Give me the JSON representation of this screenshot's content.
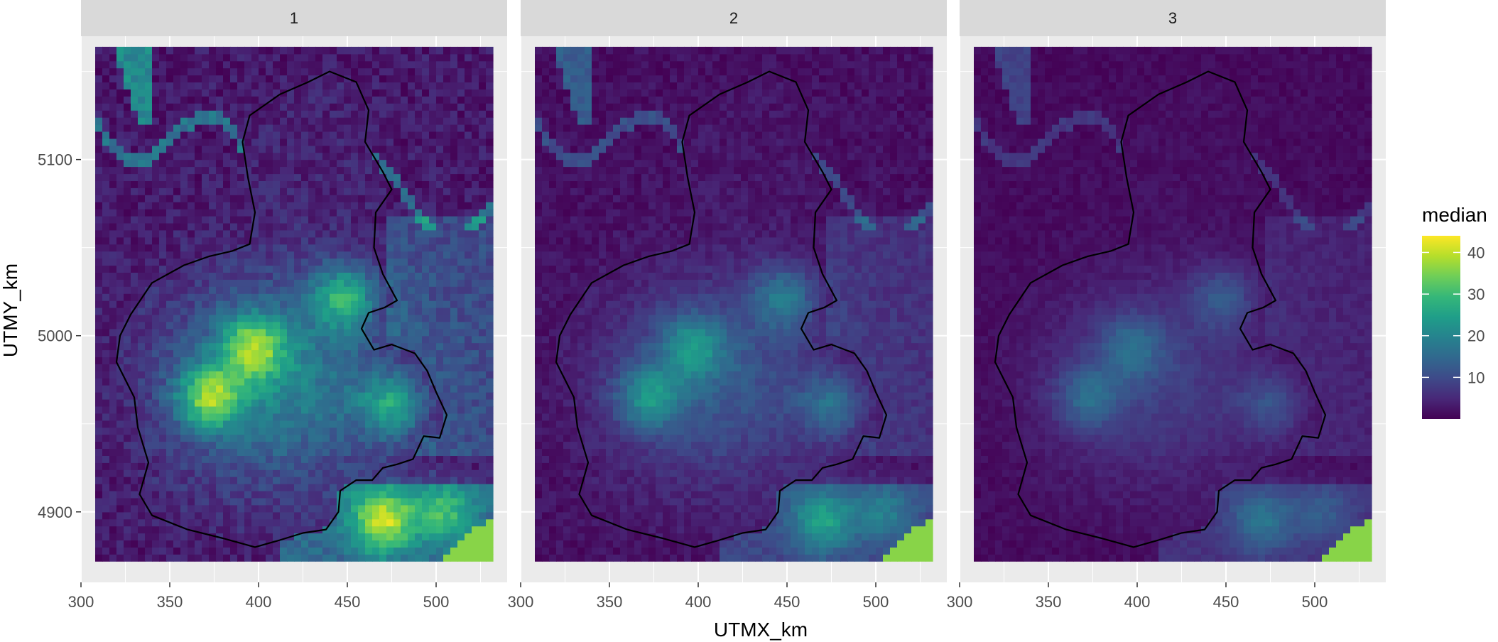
{
  "chart_data": {
    "type": "heatmap",
    "title": "",
    "xlabel": "UTMX_km",
    "ylabel": "UTMY_km",
    "xlim": [
      300,
      540
    ],
    "ylim": [
      4860,
      5170
    ],
    "x_ticks": [
      "300",
      "350",
      "400",
      "450",
      "500"
    ],
    "y_ticks": [
      "4900",
      "5000",
      "5100"
    ],
    "grid": true,
    "panels": [
      "1",
      "2",
      "3"
    ],
    "panel_intensity": [
      1.0,
      0.62,
      0.42
    ],
    "grid_extent": {
      "x": [
        308,
        532
      ],
      "y": [
        4872,
        5162
      ]
    },
    "legend": {
      "title": "median",
      "position": "right",
      "range": [
        0,
        44
      ],
      "ticks": [
        "10",
        "20",
        "30",
        "40"
      ],
      "colors": [
        "#440154",
        "#482878",
        "#3e4a89",
        "#31688e",
        "#26828e",
        "#1f9e89",
        "#35b779",
        "#6ece58",
        "#b5de2b",
        "#fde725"
      ]
    },
    "hotspots": [
      {
        "x": 372,
        "y": 4965,
        "value": 42
      },
      {
        "x": 397,
        "y": 4994,
        "value": 40
      },
      {
        "x": 448,
        "y": 5022,
        "value": 38
      },
      {
        "x": 475,
        "y": 4960,
        "value": 36
      },
      {
        "x": 470,
        "y": 4895,
        "value": 44
      },
      {
        "x": 505,
        "y": 4900,
        "value": 34
      }
    ],
    "boundary": [
      [
        395,
        5125
      ],
      [
        412,
        5137
      ],
      [
        428,
        5144
      ],
      [
        440,
        5150
      ],
      [
        455,
        5144
      ],
      [
        462,
        5128
      ],
      [
        460,
        5110
      ],
      [
        470,
        5093
      ],
      [
        475,
        5083
      ],
      [
        466,
        5070
      ],
      [
        465,
        5050
      ],
      [
        470,
        5035
      ],
      [
        478,
        5020
      ],
      [
        471,
        5016
      ],
      [
        462,
        5013
      ],
      [
        458,
        5004
      ],
      [
        465,
        4992
      ],
      [
        475,
        4995
      ],
      [
        488,
        4990
      ],
      [
        495,
        4980
      ],
      [
        500,
        4968
      ],
      [
        506,
        4955
      ],
      [
        502,
        4942
      ],
      [
        493,
        4943
      ],
      [
        487,
        4930
      ],
      [
        478,
        4927
      ],
      [
        470,
        4925
      ],
      [
        464,
        4918
      ],
      [
        455,
        4918
      ],
      [
        446,
        4912
      ],
      [
        445,
        4900
      ],
      [
        438,
        4890
      ],
      [
        425,
        4888
      ],
      [
        412,
        4884
      ],
      [
        398,
        4880
      ],
      [
        380,
        4885
      ],
      [
        360,
        4890
      ],
      [
        340,
        4898
      ],
      [
        333,
        4910
      ],
      [
        338,
        4928
      ],
      [
        332,
        4948
      ],
      [
        330,
        4965
      ],
      [
        320,
        4985
      ],
      [
        322,
        5000
      ],
      [
        328,
        5012
      ],
      [
        340,
        5030
      ],
      [
        358,
        5040
      ],
      [
        372,
        5045
      ],
      [
        385,
        5048
      ],
      [
        395,
        5052
      ],
      [
        398,
        5070
      ],
      [
        394,
        5090
      ],
      [
        391,
        5110
      ],
      [
        395,
        5125
      ]
    ]
  }
}
